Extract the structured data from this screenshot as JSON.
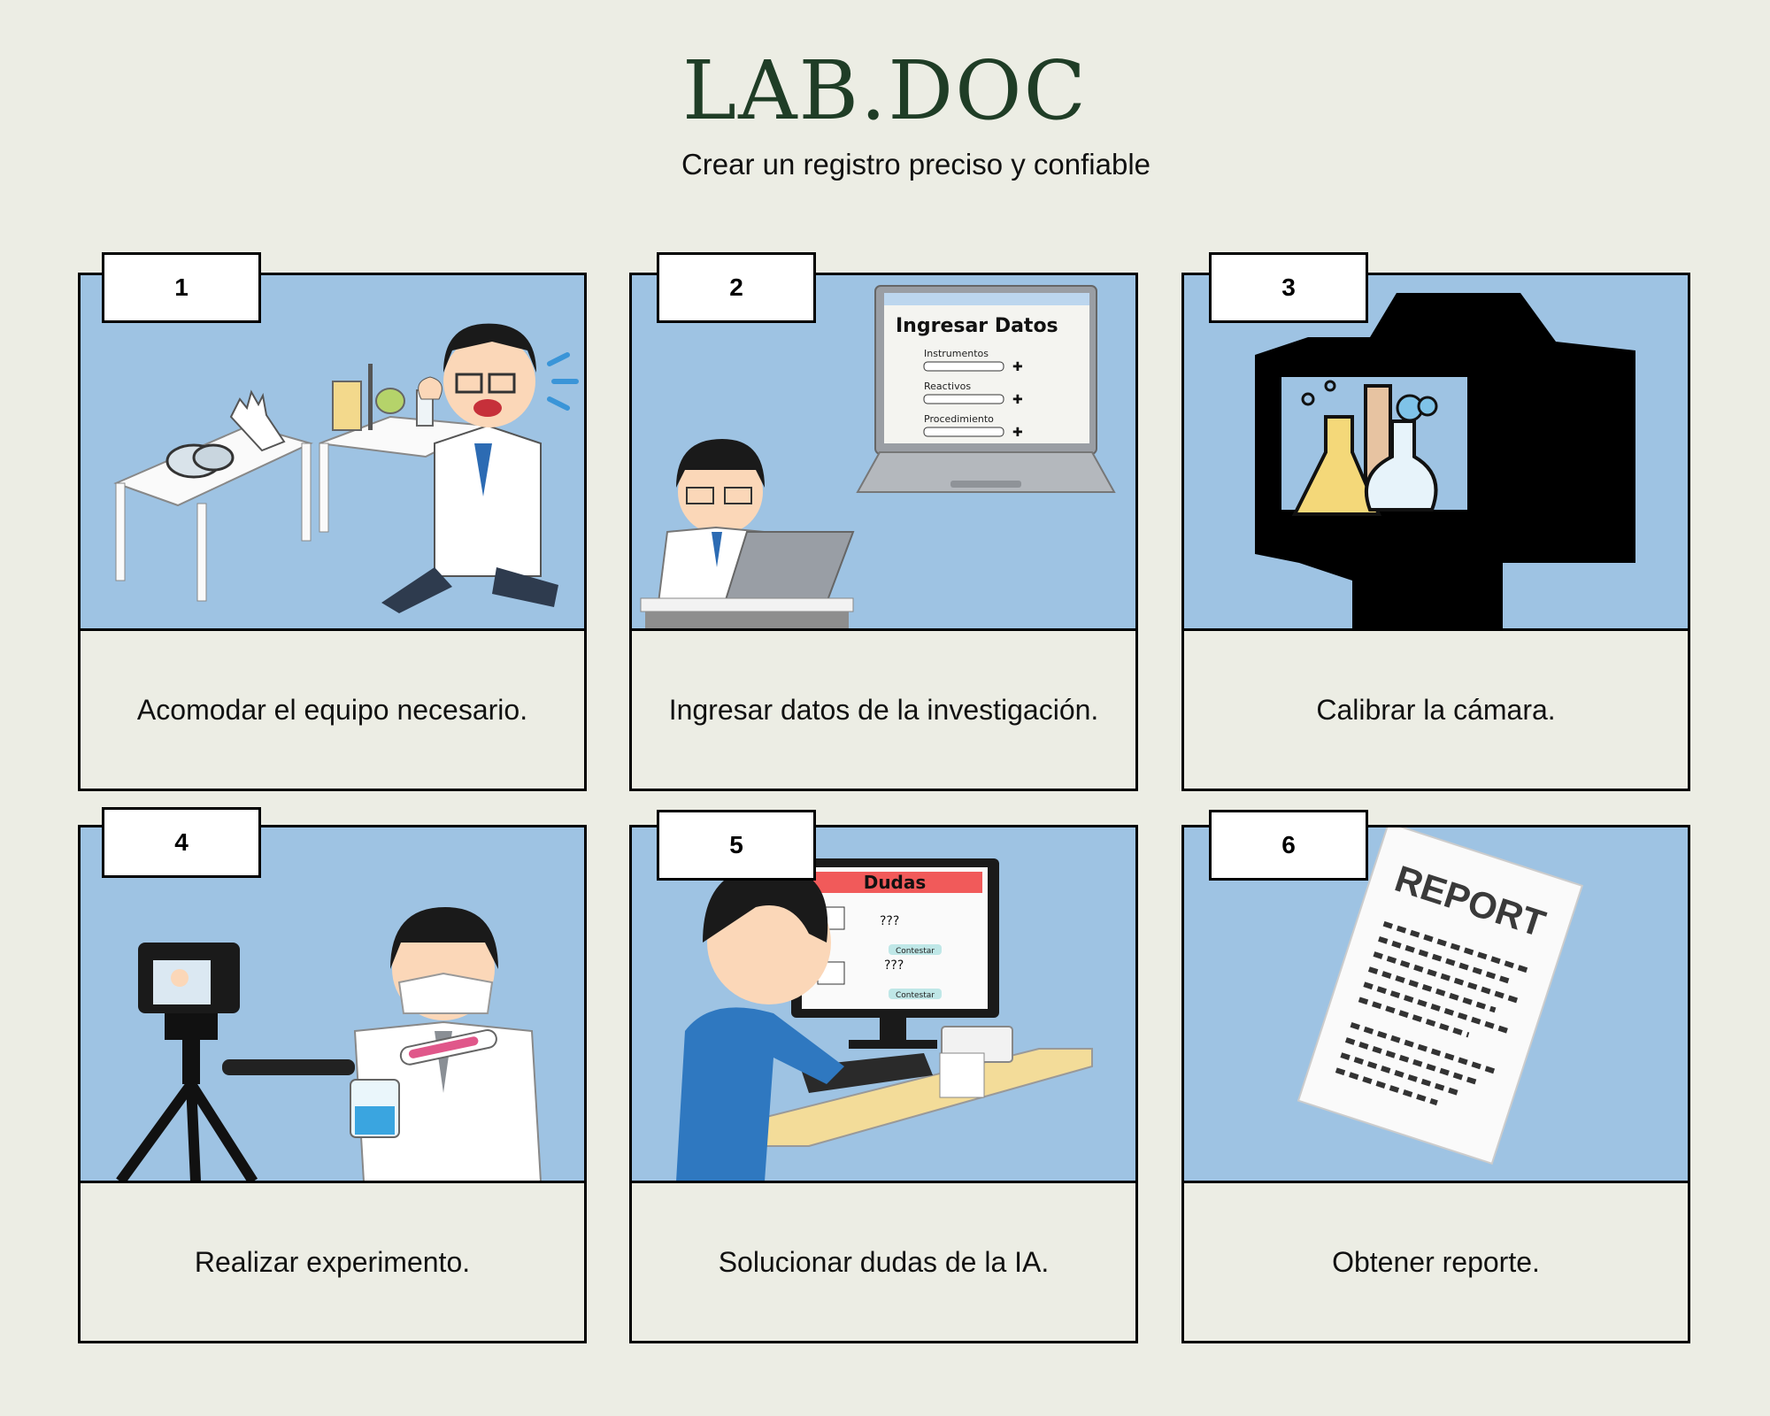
{
  "header": {
    "title": "LAB.DOC",
    "subtitle": "Crear un registro preciso y confiable"
  },
  "steps": [
    {
      "number": "1",
      "caption": "Acomodar el equipo necesario.",
      "icon": "lab-equipment-running-scientist-icon"
    },
    {
      "number": "2",
      "caption": "Ingresar datos de la investigación.",
      "icon": "laptop-data-entry-icon",
      "screen": {
        "title": "Ingresar Datos",
        "fields": [
          "Instrumentos",
          "Reactivos",
          "Procedimiento"
        ]
      }
    },
    {
      "number": "3",
      "caption": "Calibrar la cámara.",
      "icon": "camera-flasks-icon"
    },
    {
      "number": "4",
      "caption": "Realizar experimento.",
      "icon": "camera-tripod-scientist-icon"
    },
    {
      "number": "5",
      "caption": "Solucionar dudas de la IA.",
      "icon": "computer-questions-icon",
      "screen": {
        "title": "Dudas",
        "question": "???",
        "button": "Contestar"
      }
    },
    {
      "number": "6",
      "caption": "Obtener reporte.",
      "icon": "report-document-icon",
      "screen": {
        "title": "REPORT"
      }
    }
  ],
  "colors": {
    "background": "#ecede4",
    "scene": "#9ec3e3",
    "title": "#1f3d26"
  }
}
